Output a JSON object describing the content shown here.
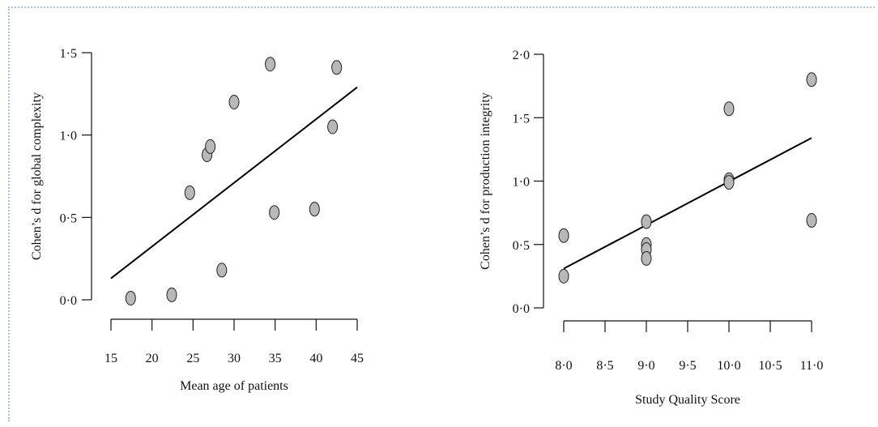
{
  "chart_data": [
    {
      "type": "scatter",
      "xlabel": "Mean age of patients",
      "ylabel": "Cohen’s d for global complexity",
      "xlim": [
        15,
        45
      ],
      "ylim": [
        0.0,
        1.5
      ],
      "x_ticks": [
        15,
        20,
        25,
        30,
        35,
        40,
        45
      ],
      "x_tick_labels": [
        "15",
        "20",
        "25",
        "30",
        "35",
        "40",
        "45"
      ],
      "y_ticks": [
        0.0,
        0.5,
        1.0,
        1.5
      ],
      "y_tick_labels": [
        "0·0",
        "0·5",
        "1·0",
        "1·5"
      ],
      "points": [
        {
          "x": 17.4,
          "y": 0.01
        },
        {
          "x": 22.4,
          "y": 0.03
        },
        {
          "x": 24.6,
          "y": 0.65
        },
        {
          "x": 26.7,
          "y": 0.88
        },
        {
          "x": 27.1,
          "y": 0.93
        },
        {
          "x": 28.5,
          "y": 0.18
        },
        {
          "x": 30.0,
          "y": 1.2
        },
        {
          "x": 34.4,
          "y": 1.43
        },
        {
          "x": 34.9,
          "y": 0.53
        },
        {
          "x": 39.8,
          "y": 0.55
        },
        {
          "x": 42.0,
          "y": 1.05
        },
        {
          "x": 42.5,
          "y": 1.41
        }
      ],
      "fit_line": {
        "x": [
          15,
          45
        ],
        "y": [
          0.13,
          1.29
        ]
      },
      "grid": false,
      "legend": "none"
    },
    {
      "type": "scatter",
      "xlabel": "Study Quality Score",
      "ylabel": "Cohen’s d for production integrity",
      "xlim": [
        8.0,
        11.0
      ],
      "ylim": [
        0.0,
        2.0
      ],
      "x_ticks": [
        8.0,
        8.5,
        9.0,
        9.5,
        10.0,
        10.5,
        11.0
      ],
      "x_tick_labels": [
        "8·0",
        "8·5",
        "9·0",
        "9·5",
        "10·0",
        "10·5",
        "11·0"
      ],
      "y_ticks": [
        0.0,
        0.5,
        1.0,
        1.5,
        2.0
      ],
      "y_tick_labels": [
        "0·0",
        "0·5",
        "1·0",
        "1·5",
        "2·0"
      ],
      "points": [
        {
          "x": 8.0,
          "y": 0.57
        },
        {
          "x": 8.0,
          "y": 0.25
        },
        {
          "x": 9.0,
          "y": 0.68
        },
        {
          "x": 9.0,
          "y": 0.5
        },
        {
          "x": 9.0,
          "y": 0.46
        },
        {
          "x": 9.0,
          "y": 0.39
        },
        {
          "x": 10.0,
          "y": 1.57
        },
        {
          "x": 10.0,
          "y": 1.01
        },
        {
          "x": 10.0,
          "y": 0.99
        },
        {
          "x": 11.0,
          "y": 1.8
        },
        {
          "x": 11.0,
          "y": 0.69
        }
      ],
      "fit_line": {
        "x": [
          8.0,
          11.0
        ],
        "y": [
          0.31,
          1.34
        ]
      },
      "grid": false,
      "legend": "none"
    }
  ]
}
